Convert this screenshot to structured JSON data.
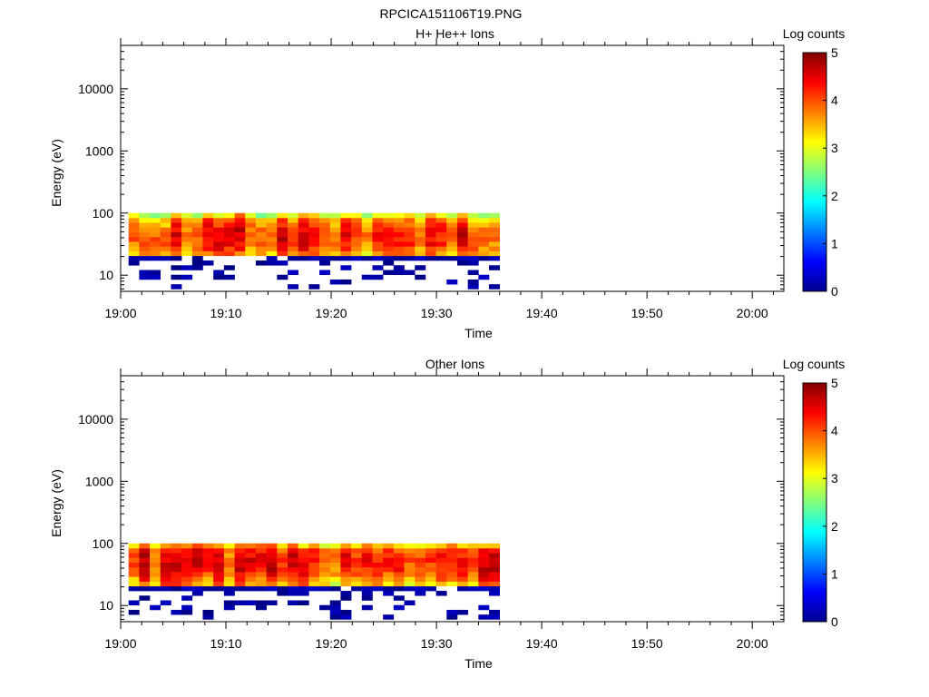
{
  "figure_title": "RPCICA151106T19.PNG",
  "chart_data": [
    {
      "type": "heatmap",
      "title": "H+ He++ Ions",
      "xlabel": "Time",
      "ylabel": "Energy (eV)",
      "x_ticks": [
        "19:00",
        "19:10",
        "19:20",
        "19:30",
        "19:40",
        "19:50",
        "20:00"
      ],
      "xlim": [
        "19:00",
        "20:03"
      ],
      "y_ticks": [
        "10",
        "100",
        "1000",
        "10000"
      ],
      "ylim": [
        5.5,
        50000
      ],
      "y_scale": "log",
      "colorbar": {
        "label": "Log counts",
        "ticks": [
          "0",
          "1",
          "2",
          "3",
          "4",
          "5"
        ],
        "range": [
          0,
          5
        ],
        "colormap": "jet"
      },
      "data_time_range": [
        "19:00:45",
        "19:36:00"
      ],
      "energy_range_ev": [
        6,
        100
      ],
      "peak_energy_ev": [
        30,
        60
      ],
      "peak_log_counts": [
        3.8,
        4.2
      ]
    },
    {
      "type": "heatmap",
      "title": "Other Ions",
      "xlabel": "Time",
      "ylabel": "Energy (eV)",
      "x_ticks": [
        "19:00",
        "19:10",
        "19:20",
        "19:30",
        "19:40",
        "19:50",
        "20:00"
      ],
      "xlim": [
        "19:00",
        "20:03"
      ],
      "y_ticks": [
        "10",
        "100",
        "1000",
        "10000"
      ],
      "ylim": [
        5.5,
        50000
      ],
      "y_scale": "log",
      "colorbar": {
        "label": "Log counts",
        "ticks": [
          "0",
          "1",
          "2",
          "3",
          "4",
          "5"
        ],
        "range": [
          0,
          5
        ],
        "colormap": "jet"
      },
      "data_time_range": [
        "19:00:45",
        "19:36:00"
      ],
      "energy_range_ev": [
        6,
        100
      ],
      "peak_energy_ev": [
        35,
        70
      ],
      "peak_log_counts": [
        3.8,
        4.3
      ]
    }
  ]
}
